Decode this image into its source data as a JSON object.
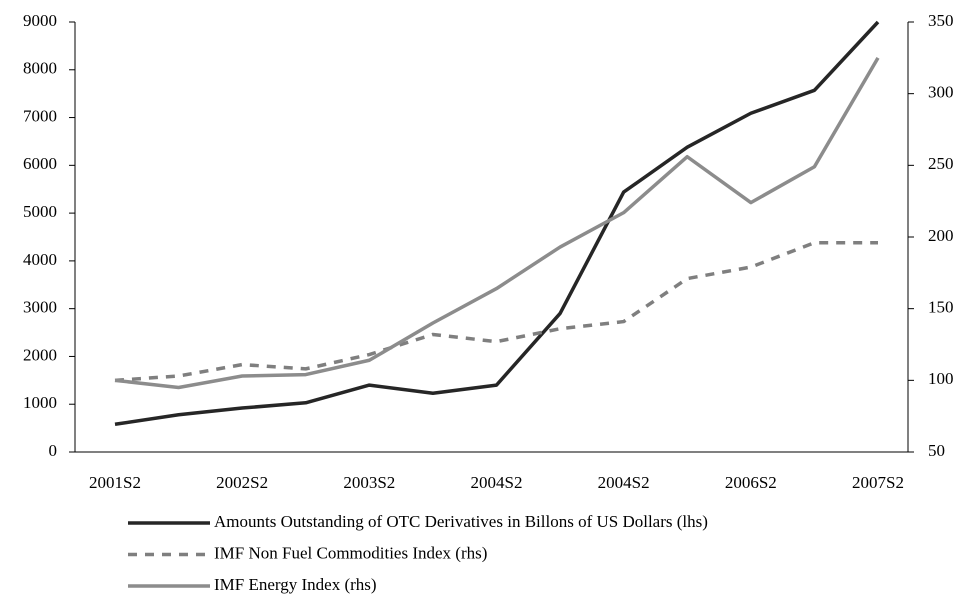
{
  "chart_data": {
    "type": "line",
    "categories": [
      "2001S2",
      null,
      "2002S2",
      null,
      "2003S2",
      null,
      "2004S2",
      null,
      "2004S2",
      null,
      "2006S2",
      null,
      "2007S2"
    ],
    "ylim": [
      0,
      9000
    ],
    "yticks": [
      0,
      1000,
      2000,
      3000,
      4000,
      5000,
      6000,
      7000,
      8000,
      9000
    ],
    "y2lim": [
      50,
      350
    ],
    "y2ticks": [
      50,
      100,
      150,
      200,
      250,
      300,
      350
    ],
    "series": [
      {
        "name": "Amounts Outstanding of OTC Derivatives in Billons of US Dollars (lhs)",
        "color": "#262626",
        "line_style": "solid",
        "values": [
          580,
          780,
          920,
          1030,
          1400,
          1230,
          1400,
          2900,
          5440,
          6380,
          7090,
          7570,
          9000
        ]
      },
      {
        "name": "IMF Non Fuel Commodities Index (rhs)",
        "color": "#7f7f7f",
        "line_style": "dashed",
        "axis": "y2",
        "values": [
          100,
          103,
          111,
          108,
          118,
          132,
          127,
          136,
          141,
          171,
          179,
          196,
          196
        ]
      },
      {
        "name": "IMF Energy Index (rhs)",
        "color": "#8c8c8c",
        "line_style": "solid",
        "axis": "y2",
        "values": [
          100,
          95,
          103,
          104,
          114,
          140,
          164,
          193,
          217,
          256,
          224,
          249,
          325
        ]
      }
    ]
  }
}
